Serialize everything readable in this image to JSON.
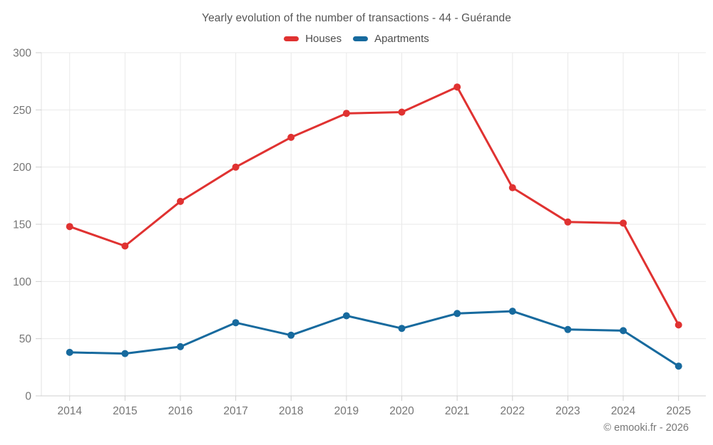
{
  "chart_data": {
    "type": "line",
    "title": "Yearly evolution of the number of transactions - 44 - Guérande",
    "categories": [
      "2014",
      "2015",
      "2016",
      "2017",
      "2018",
      "2019",
      "2020",
      "2021",
      "2022",
      "2023",
      "2024",
      "2025"
    ],
    "series": [
      {
        "name": "Houses",
        "color": "#e03231",
        "values": [
          148,
          131,
          170,
          200,
          226,
          247,
          248,
          270,
          182,
          152,
          151,
          62
        ]
      },
      {
        "name": "Apartments",
        "color": "#176a9e",
        "values": [
          38,
          37,
          43,
          64,
          53,
          70,
          59,
          72,
          74,
          58,
          57,
          26
        ]
      }
    ],
    "xlabel": "",
    "ylabel": "",
    "ylim": [
      0,
      300
    ],
    "y_ticks": [
      0,
      50,
      100,
      150,
      200,
      250,
      300
    ],
    "grid": true,
    "legend_position": "top"
  },
  "footer": {
    "credit": "© emooki.fr - 2026"
  },
  "colors": {
    "background": "#ffffff",
    "grid": "#e9e9e9",
    "axis_line": "#cfcfcf",
    "left_axis_line": "#e2e2e2",
    "tick": "#cfcfcf",
    "tick_label": "#757575"
  }
}
